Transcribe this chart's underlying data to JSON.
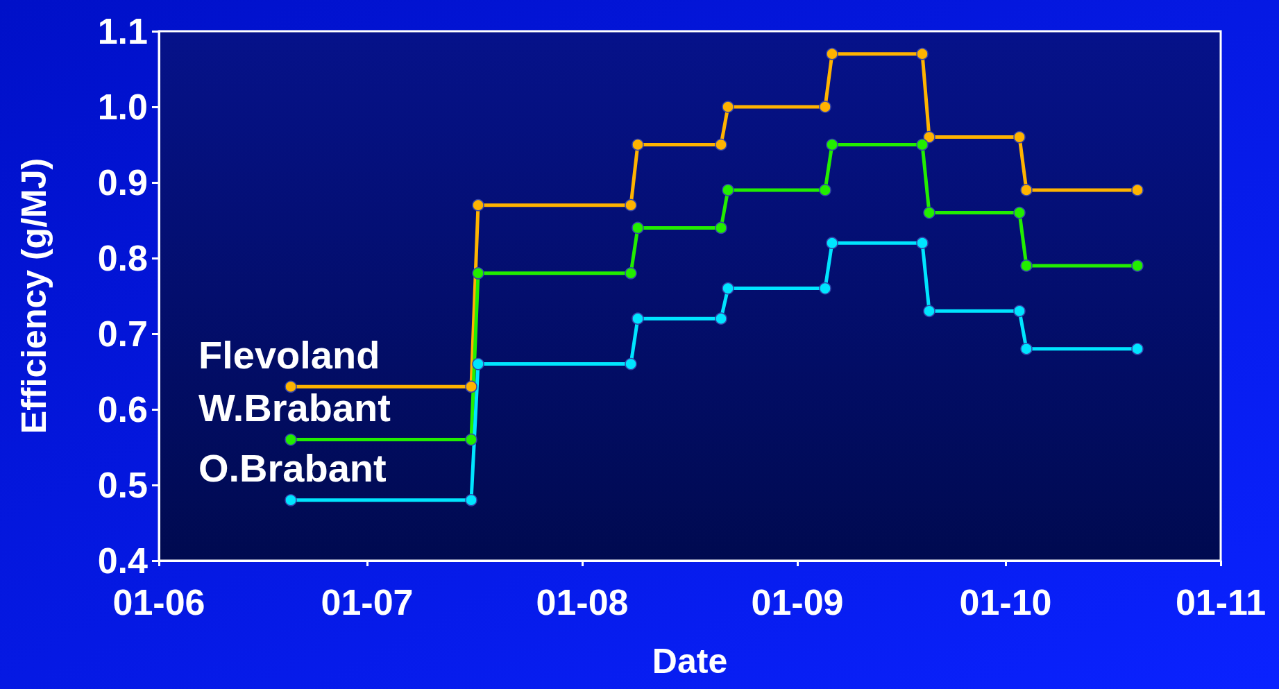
{
  "chart_data": {
    "type": "line",
    "xlabel": "Date",
    "ylabel": "Efficiency (g/MJ)",
    "marker": "circle",
    "line_style": "solid",
    "grid": false,
    "xlim": [
      "--06-01",
      "--11-01"
    ],
    "xticks": [
      {
        "value": "--06-01",
        "label": "01-06"
      },
      {
        "value": "--07-01",
        "label": "01-07"
      },
      {
        "value": "--08-01",
        "label": "01-08"
      },
      {
        "value": "--09-01",
        "label": "01-09"
      },
      {
        "value": "--10-01",
        "label": "01-10"
      },
      {
        "value": "--11-01",
        "label": "01-11"
      }
    ],
    "ylim": [
      0.4,
      1.1
    ],
    "yticks": [
      0.4,
      0.5,
      0.6,
      0.7,
      0.8,
      0.9,
      {
        "value": 1,
        "label": "1.0"
      },
      1.1
    ],
    "x": [
      "--06-20",
      "--07-16",
      "--07-17",
      "--08-08",
      "--08-09",
      "--08-21",
      "--08-22",
      "--09-05",
      "--09-06",
      "--09-19",
      "--09-20",
      "--10-03",
      "--10-04",
      "--10-20"
    ],
    "series": [
      {
        "name": "Flevoland",
        "color": "#ffb300",
        "values": [
          0.63,
          0.63,
          0.87,
          0.87,
          0.95,
          0.95,
          1.0,
          1.0,
          1.07,
          1.07,
          0.96,
          0.96,
          0.89,
          0.89
        ]
      },
      {
        "name": "W.Brabant",
        "color": "#22ee00",
        "values": [
          0.56,
          0.56,
          0.78,
          0.78,
          0.84,
          0.84,
          0.89,
          0.89,
          0.95,
          0.95,
          0.86,
          0.86,
          0.79,
          0.79
        ]
      },
      {
        "name": "O.Brabant",
        "color": "#00e5ff",
        "values": [
          0.48,
          0.48,
          0.66,
          0.66,
          0.72,
          0.72,
          0.76,
          0.76,
          0.82,
          0.82,
          0.73,
          0.73,
          0.68,
          0.68
        ]
      }
    ]
  }
}
